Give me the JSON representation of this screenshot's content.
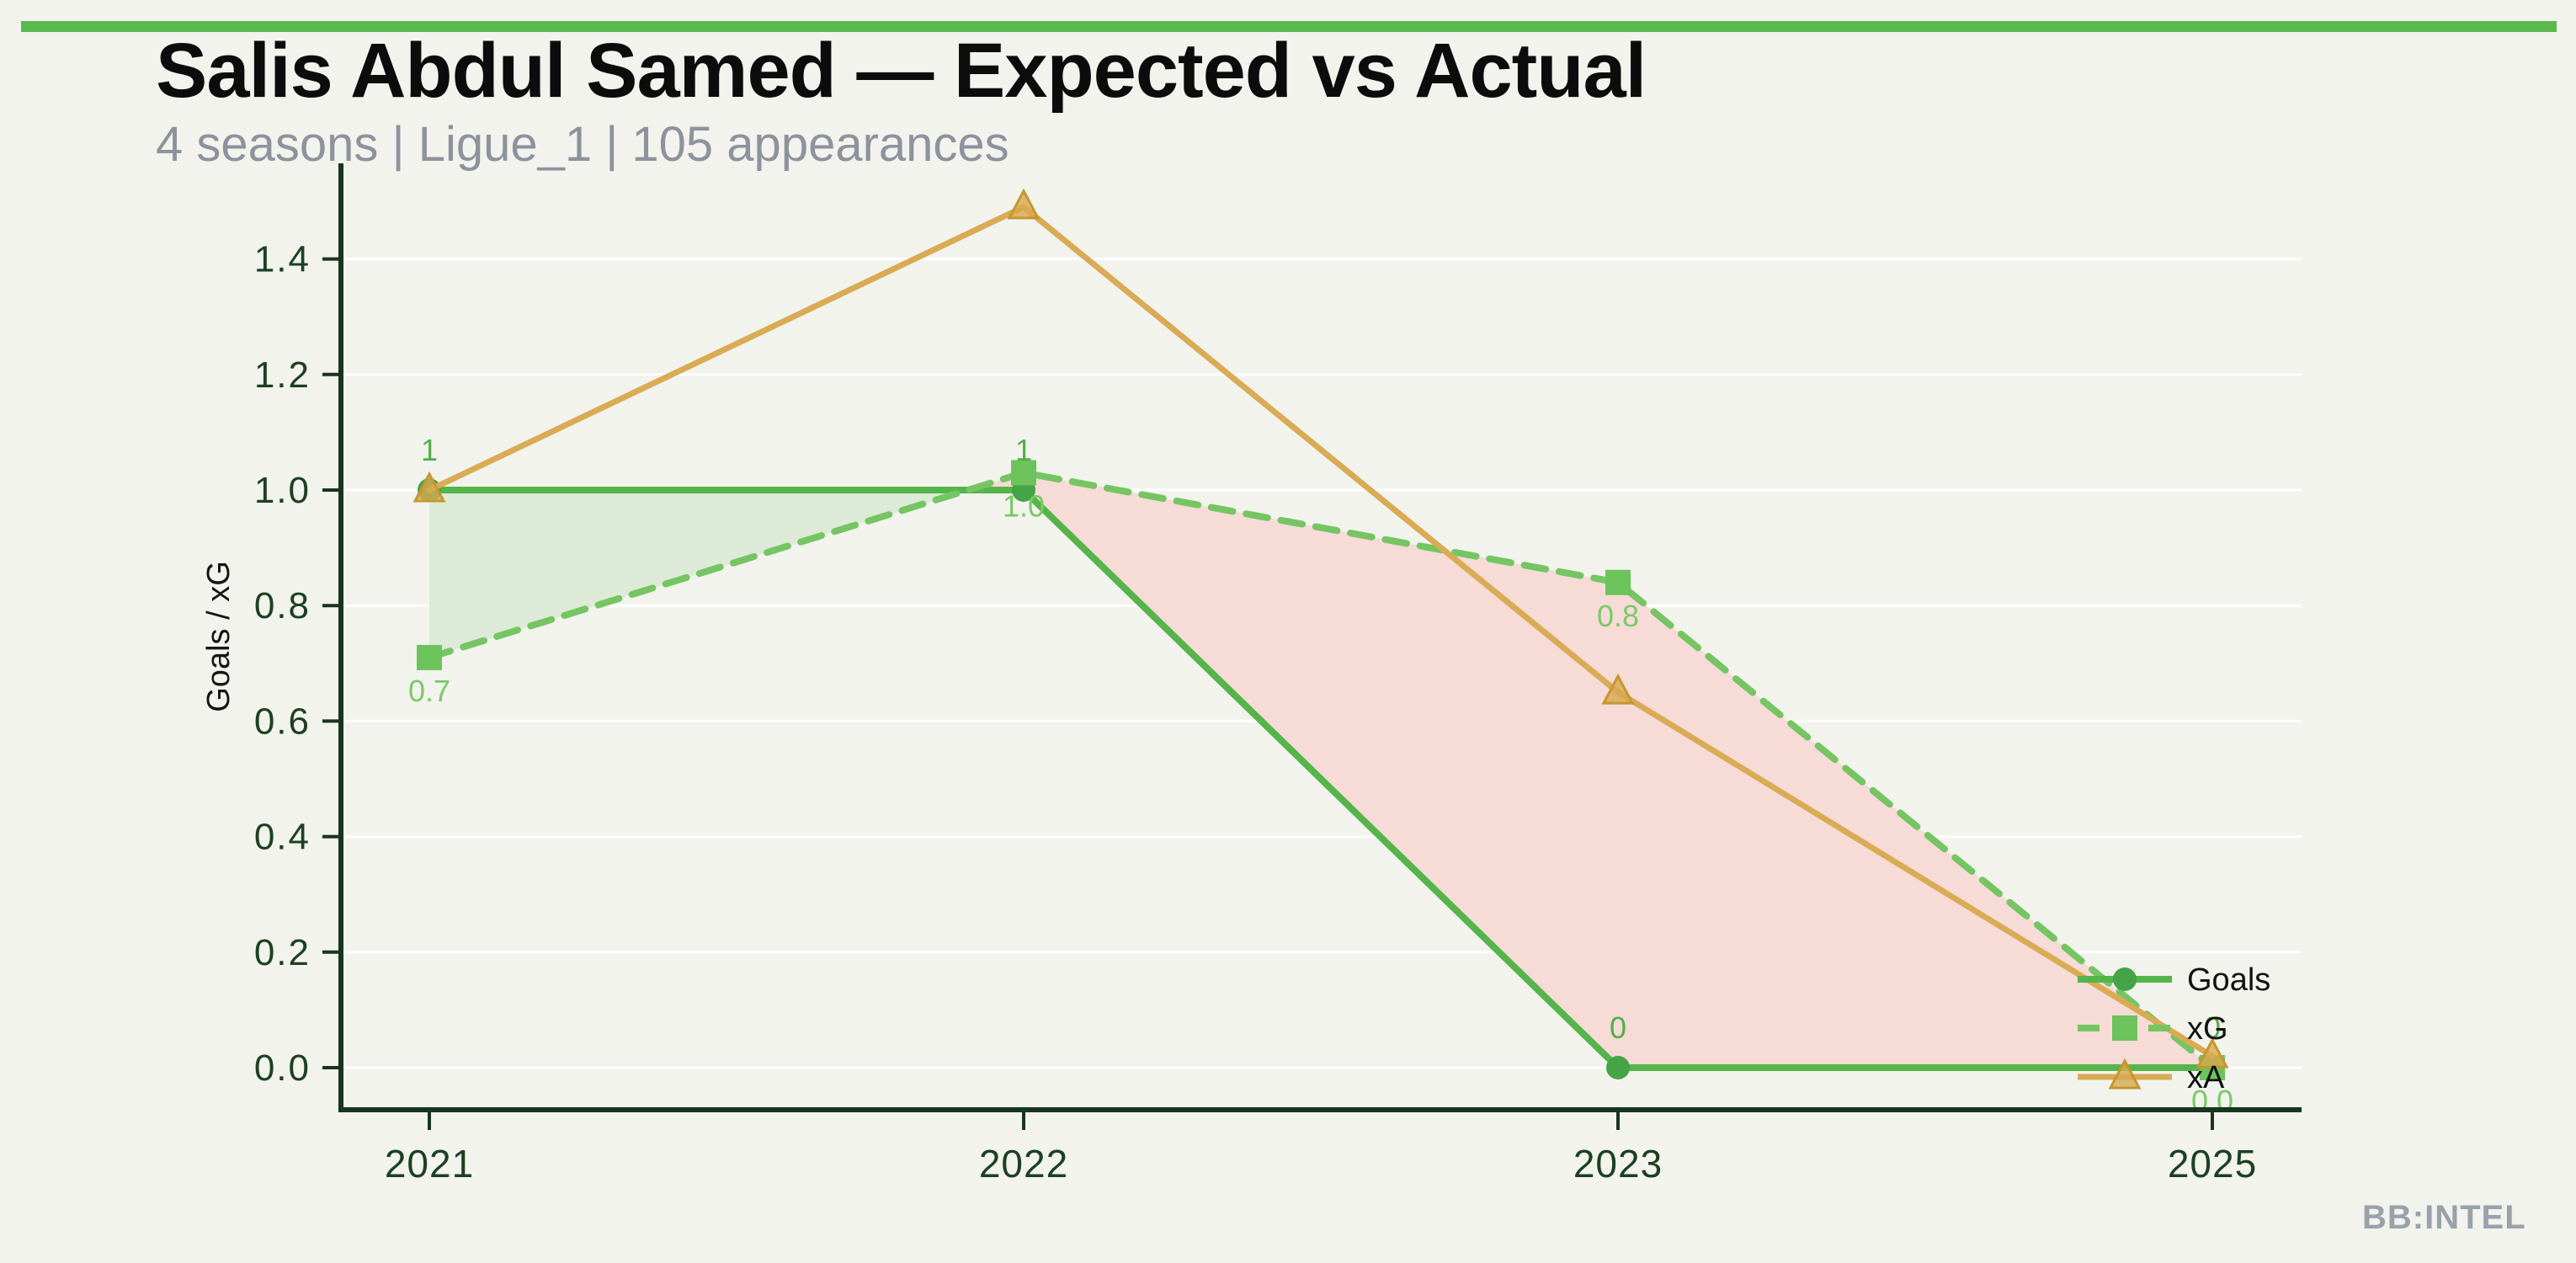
{
  "page": {
    "background": "#f2f3ed",
    "accent_bar_color": "#5bb84d"
  },
  "header": {
    "title": "Salis Abdul Samed — Expected vs Actual",
    "subtitle": "4 seasons | Ligue_1 | 105 appearances"
  },
  "watermark": {
    "text": "BB:INTEL",
    "color": "#9aa1ab"
  },
  "chart_data": {
    "type": "line",
    "title": "Salis Abdul Samed — Expected vs Actual",
    "categories": [
      "2021",
      "2022",
      "2023",
      "2025"
    ],
    "series": [
      {
        "name": "Goals",
        "values": [
          1,
          1,
          0,
          0
        ],
        "point_labels": [
          "1",
          "1",
          "0",
          "0"
        ],
        "label_position": "above",
        "label_color": "#52af49",
        "color": "#55b44a",
        "marker": "circle",
        "marker_color": "#45a348",
        "line_style": "solid"
      },
      {
        "name": "xG",
        "values": [
          0.71,
          1.03,
          0.84,
          0.0
        ],
        "point_labels": [
          "0.7",
          "1.0",
          "0.8",
          "0.0"
        ],
        "label_position": "below",
        "label_color": "#7aca68",
        "color": "#75c563",
        "marker": "square",
        "marker_color": "#6cc35b",
        "line_style": "dashed"
      },
      {
        "name": "xA",
        "values": [
          1.0,
          1.49,
          0.65,
          0.02
        ],
        "point_labels": null,
        "label_position": "none",
        "label_color": "#d9ab54",
        "color": "#d9ab54",
        "marker": "triangle",
        "marker_color": "#d7a94e",
        "marker_edge_color": "#c6962f",
        "line_style": "solid"
      }
    ],
    "xlabel": "",
    "ylabel": "Goals / xG",
    "yticks": [
      "0.0",
      "0.2",
      "0.4",
      "0.6",
      "0.8",
      "1.0",
      "1.2",
      "1.4"
    ],
    "ylim": [
      -0.073,
      1.565
    ],
    "grid": true,
    "grid_color": "rgba(255,255,255,0.9)",
    "spine_color": "#17351f",
    "tick_label_color": "#1d4022",
    "legend": {
      "position": "right-inside",
      "entries": [
        "Goals",
        "xG",
        "xA"
      ]
    },
    "fill_between": {
      "series_a": "Goals",
      "series_b": "xG",
      "over_color": "#dcead7",
      "under_color": "#f6dbd6"
    }
  }
}
